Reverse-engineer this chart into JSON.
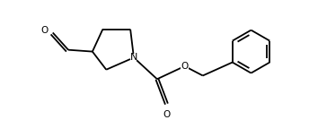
{
  "line_color": "#000000",
  "bg_color": "#ffffff",
  "line_width": 1.3,
  "font_size": 7.5,
  "figsize": [
    3.44,
    1.34
  ],
  "dpi": 100,
  "xlim": [
    0,
    344
  ],
  "ylim": [
    0,
    134
  ]
}
